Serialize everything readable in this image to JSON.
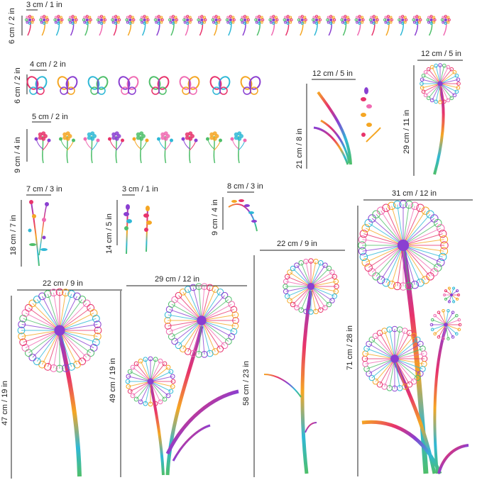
{
  "accent_colors": [
    "#e8336b",
    "#f5a623",
    "#2fb8d6",
    "#8a3fd1",
    "#4fbf6a",
    "#f06ab2"
  ],
  "sets": [
    {
      "id": "small-dandelions",
      "width_label": "3 cm / 1 in",
      "height_label": "6 cm / 2 in",
      "icon": "small-dandelion-icon",
      "count": 30
    },
    {
      "id": "butterflies",
      "width_label": "4 cm / 2 in",
      "height_label": "6 cm / 2 in",
      "icon": "butterfly-icon",
      "count": 8
    },
    {
      "id": "wildflowers",
      "width_label": "5 cm / 2 in",
      "height_label": "9 cm / 4 in",
      "icon": "wildflower-icon",
      "count": 9
    },
    {
      "id": "grass-lavender",
      "width_label": "12 cm / 5 in",
      "height_label": "21 cm / 8 in",
      "icon": "grass-lavender-icon"
    },
    {
      "id": "single-dandelion",
      "width_label": "12 cm / 5 in",
      "height_label": "29 cm / 11 in",
      "icon": "dandelion-icon"
    },
    {
      "id": "flower-sprig",
      "width_label": "7 cm / 3 in",
      "height_label": "18 cm / 7 in",
      "icon": "flower-sprig-icon"
    },
    {
      "id": "lavender-pair",
      "width_label": "3 cm / 1 in",
      "height_label": "14 cm / 5 in",
      "icon": "lavender-icon"
    },
    {
      "id": "fern-sprig",
      "width_label": "8 cm / 3 in",
      "height_label": "9 cm / 4 in",
      "icon": "fern-sprig-icon"
    },
    {
      "id": "dandelion-22-47",
      "width_label": "22 cm / 9 in",
      "height_label": "47 cm / 19 in",
      "icon": "dandelion-icon"
    },
    {
      "id": "dandelion-29-49",
      "width_label": "29 cm / 12 in",
      "height_label": "49 cm / 19 in",
      "icon": "dandelion-pair-icon"
    },
    {
      "id": "dandelion-22-58",
      "width_label": "22 cm / 9 in",
      "height_label": "58 cm / 23 in",
      "icon": "dandelion-icon"
    },
    {
      "id": "dandelion-31-71",
      "width_label": "31 cm / 12 in",
      "height_label": "71 cm / 28 in",
      "icon": "dandelion-cluster-icon"
    }
  ]
}
